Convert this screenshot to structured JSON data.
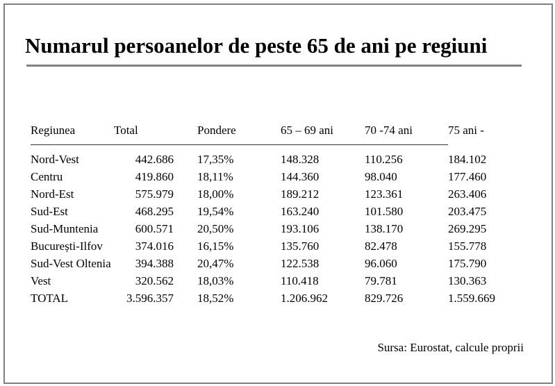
{
  "chart_data": {
    "type": "table",
    "title": "Numarul persoanelor de peste 65 de ani pe regiuni",
    "columns": [
      "Regiunea",
      "Total",
      "Pondere",
      "65 – 69 ani",
      "70 -74 ani",
      "75 ani -"
    ],
    "rows": [
      [
        "Nord-Vest",
        "442.686",
        "17,35%",
        "148.328",
        "110.256",
        "184.102"
      ],
      [
        "Centru",
        "419.860",
        "18,11%",
        "144.360",
        "98.040",
        "177.460"
      ],
      [
        "Nord-Est",
        "575.979",
        "18,00%",
        "189.212",
        "123.361",
        "263.406"
      ],
      [
        "Sud-Est",
        "468.295",
        "19,54%",
        "163.240",
        "101.580",
        "203.475"
      ],
      [
        "Sud-Muntenia",
        "600.571",
        "20,50%",
        "193.106",
        "138.170",
        "269.295"
      ],
      [
        "București-Ilfov",
        "374.016",
        "16,15%",
        "135.760",
        "82.478",
        "155.778"
      ],
      [
        "Sud-Vest Oltenia",
        "394.388",
        "20,47%",
        "122.538",
        "96.060",
        "175.790"
      ],
      [
        "Vest",
        "320.562",
        "18,03%",
        "110.418",
        "79.781",
        "130.363"
      ],
      [
        "TOTAL",
        "3.596.357",
        "18,52%",
        "1.206.962",
        "829.726",
        "1.559.669"
      ]
    ],
    "source": "Sursa: Eurostat, calcule proprii"
  }
}
